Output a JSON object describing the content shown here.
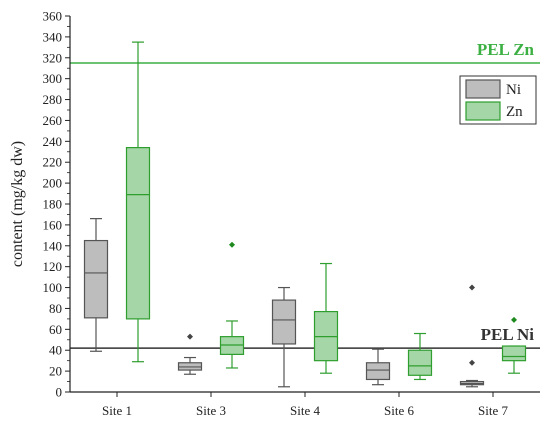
{
  "chart_data": {
    "type": "box",
    "ylabel": "content (mg/kg dw)",
    "xlabel": "",
    "ylim": [
      0,
      360
    ],
    "yticks": [
      0,
      20,
      40,
      60,
      80,
      100,
      120,
      140,
      160,
      180,
      200,
      220,
      240,
      260,
      280,
      300,
      320,
      340,
      360
    ],
    "categories": [
      "Site 1",
      "Site 3",
      "Site 4",
      "Site 6",
      "Site 7"
    ],
    "grid": false,
    "legend_position": "top-right",
    "series": [
      {
        "name": "Ni",
        "fill": "#bdbdbd",
        "stroke": "#555555",
        "outlier_color": "#444444",
        "boxes": [
          {
            "min": 39,
            "q1": 71,
            "median": 114,
            "q3": 145,
            "max": 166,
            "outliers": []
          },
          {
            "min": 17,
            "q1": 21,
            "median": 24,
            "q3": 28,
            "max": 33,
            "outliers": [
              53
            ]
          },
          {
            "min": 5,
            "q1": 46,
            "median": 69,
            "q3": 88,
            "max": 100,
            "outliers": []
          },
          {
            "min": 7,
            "q1": 12,
            "median": 21,
            "q3": 28,
            "max": 41,
            "outliers": []
          },
          {
            "min": 5,
            "q1": 7,
            "median": 8,
            "q3": 10,
            "max": 11,
            "outliers": [
              28,
              100
            ]
          }
        ]
      },
      {
        "name": "Zn",
        "fill": "#a5d6a7",
        "stroke": "#2e9e2e",
        "outlier_color": "#1e8a1e",
        "boxes": [
          {
            "min": 29,
            "q1": 70,
            "median": 189,
            "q3": 234,
            "max": 335,
            "outliers": []
          },
          {
            "min": 23,
            "q1": 36,
            "median": 45,
            "q3": 53,
            "max": 68,
            "outliers": [
              141
            ]
          },
          {
            "min": 18,
            "q1": 30,
            "median": 53,
            "q3": 77,
            "max": 123,
            "outliers": []
          },
          {
            "min": 12,
            "q1": 16,
            "median": 25,
            "q3": 40,
            "max": 56,
            "outliers": []
          },
          {
            "min": 18,
            "q1": 30,
            "median": 34,
            "q3": 44,
            "max": 44,
            "outliers": [
              69
            ]
          }
        ]
      }
    ],
    "reference_lines": [
      {
        "label": "PEL Zn",
        "value": 315,
        "color": "#3cb043"
      },
      {
        "label": "PEL Ni",
        "value": 42,
        "color": "#333333"
      }
    ]
  }
}
